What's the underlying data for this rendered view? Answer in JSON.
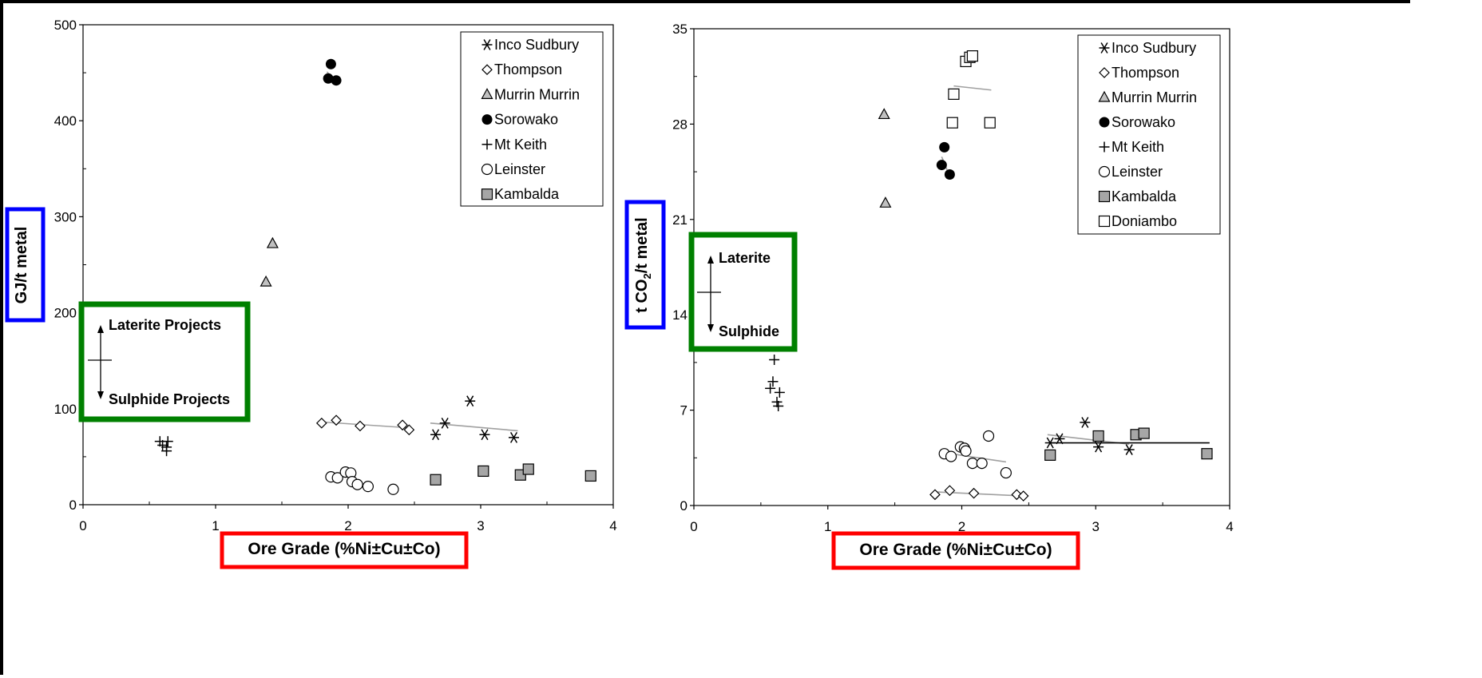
{
  "chart_data": [
    {
      "type": "scatter",
      "ylabel": "GJ/t metal",
      "xlabel": "Ore Grade (%Ni±Cu±Co)",
      "xlim": [
        0,
        4
      ],
      "ylim": [
        0,
        500
      ],
      "xticks": [
        "0",
        "1",
        "2",
        "3",
        "4"
      ],
      "yticks": [
        "0",
        "100",
        "200",
        "300",
        "400",
        "500"
      ],
      "legend_position": "top-right",
      "annotation": {
        "top": "Laterite Projects",
        "bottom": "Sulphide Projects"
      },
      "series": [
        {
          "name": "Inco Sudbury",
          "marker": "asterisk",
          "points": [
            [
              2.92,
              108
            ],
            [
              2.73,
              85
            ],
            [
              2.66,
              73
            ],
            [
              3.03,
              73
            ],
            [
              3.25,
              70
            ]
          ]
        },
        {
          "name": "Thompson",
          "marker": "diamond",
          "points": [
            [
              1.8,
              85
            ],
            [
              1.91,
              88
            ],
            [
              2.09,
              82
            ],
            [
              2.41,
              83
            ],
            [
              2.46,
              78
            ]
          ]
        },
        {
          "name": "Murrin Murrin",
          "marker": "triangle",
          "points": [
            [
              1.43,
              272
            ],
            [
              1.38,
              232
            ]
          ]
        },
        {
          "name": "Sorowako",
          "marker": "filled-circle",
          "points": [
            [
              1.87,
              459
            ],
            [
              1.85,
              444
            ],
            [
              1.91,
              442
            ]
          ]
        },
        {
          "name": "Mt Keith",
          "marker": "plus",
          "points": [
            [
              0.58,
              66
            ],
            [
              0.64,
              66
            ],
            [
              0.6,
              62
            ],
            [
              0.63,
              60
            ],
            [
              0.63,
              56
            ]
          ]
        },
        {
          "name": "Leinster",
          "marker": "circle",
          "points": [
            [
              1.87,
              29
            ],
            [
              1.92,
              28
            ],
            [
              1.98,
              34
            ],
            [
              2.02,
              33
            ],
            [
              2.03,
              24
            ],
            [
              2.07,
              21
            ],
            [
              2.15,
              19
            ],
            [
              2.34,
              16
            ]
          ]
        },
        {
          "name": "Kambalda",
          "marker": "gray-square",
          "points": [
            [
              2.66,
              26
            ],
            [
              3.02,
              35
            ],
            [
              3.3,
              31
            ],
            [
              3.36,
              37
            ],
            [
              3.83,
              30
            ]
          ]
        }
      ],
      "trendlines": [
        {
          "color": "#a0a0a0",
          "points": [
            [
              2.62,
              85
            ],
            [
              3.28,
              77
            ]
          ]
        },
        {
          "color": "#a0a0a0",
          "points": [
            [
              1.82,
              86
            ],
            [
              2.47,
              80
            ]
          ]
        },
        {
          "color": "#a0a0a0",
          "points": [
            [
              1.84,
              451
            ],
            [
              1.9,
              441
            ]
          ]
        }
      ]
    },
    {
      "type": "scatter",
      "ylabel": "t CO2/t metal",
      "xlabel": "Ore Grade (%Ni±Cu±Co)",
      "xlim": [
        0,
        4
      ],
      "ylim": [
        0,
        35
      ],
      "xticks": [
        "0",
        "1",
        "2",
        "3",
        "4"
      ],
      "yticks": [
        "0",
        "7",
        "14",
        "21",
        "28",
        "35"
      ],
      "legend_position": "top-right",
      "annotation": {
        "top": "Laterite",
        "bottom": "Sulphide"
      },
      "series": [
        {
          "name": "Inco Sudbury",
          "marker": "asterisk",
          "points": [
            [
              2.92,
              6.1
            ],
            [
              2.73,
              4.9
            ],
            [
              2.66,
              4.6
            ],
            [
              3.02,
              4.3
            ],
            [
              3.25,
              4.1
            ]
          ]
        },
        {
          "name": "Thompson",
          "marker": "diamond",
          "points": [
            [
              1.8,
              0.8
            ],
            [
              1.91,
              1.1
            ],
            [
              2.09,
              0.9
            ],
            [
              2.41,
              0.8
            ],
            [
              2.46,
              0.7
            ]
          ]
        },
        {
          "name": "Murrin Murrin",
          "marker": "triangle",
          "points": [
            [
              1.42,
              28.7
            ],
            [
              1.43,
              22.2
            ]
          ]
        },
        {
          "name": "Sorowako",
          "marker": "filled-circle",
          "points": [
            [
              1.87,
              26.3
            ],
            [
              1.85,
              25.0
            ],
            [
              1.91,
              24.3
            ]
          ]
        },
        {
          "name": "Mt Keith",
          "marker": "plus",
          "points": [
            [
              0.6,
              10.7
            ],
            [
              0.59,
              9.1
            ],
            [
              0.57,
              8.6
            ],
            [
              0.64,
              8.3
            ],
            [
              0.62,
              7.6
            ],
            [
              0.63,
              7.3
            ]
          ]
        },
        {
          "name": "Leinster",
          "marker": "circle",
          "points": [
            [
              1.99,
              4.3
            ],
            [
              2.02,
              4.2
            ],
            [
              2.03,
              4.0
            ],
            [
              1.87,
              3.8
            ],
            [
              1.92,
              3.6
            ],
            [
              2.08,
              3.1
            ],
            [
              2.15,
              3.1
            ],
            [
              2.33,
              2.4
            ],
            [
              2.2,
              5.1
            ]
          ]
        },
        {
          "name": "Kambalda",
          "marker": "gray-square",
          "points": [
            [
              2.66,
              3.7
            ],
            [
              3.02,
              5.1
            ],
            [
              3.3,
              5.2
            ],
            [
              3.36,
              5.3
            ],
            [
              3.83,
              3.8
            ]
          ]
        },
        {
          "name": "Doniambo",
          "marker": "square",
          "points": [
            [
              2.03,
              32.6
            ],
            [
              2.06,
              32.9
            ],
            [
              2.08,
              33.0
            ],
            [
              1.94,
              30.2
            ],
            [
              1.93,
              28.1
            ],
            [
              2.21,
              28.1
            ]
          ]
        }
      ],
      "trendlines": [
        {
          "color": "#a0a0a0",
          "points": [
            [
              1.94,
              30.8
            ],
            [
              2.22,
              30.5
            ]
          ]
        },
        {
          "color": "#a0a0a0",
          "points": [
            [
              1.85,
              3.9
            ],
            [
              2.33,
              3.2
            ]
          ]
        },
        {
          "color": "#a0a0a0",
          "points": [
            [
              1.8,
              1.0
            ],
            [
              2.46,
              0.7
            ]
          ]
        },
        {
          "color": "#a0a0a0",
          "points": [
            [
              2.64,
              5.2
            ],
            [
              3.25,
              4.5
            ]
          ]
        },
        {
          "color": "#000000",
          "points": [
            [
              2.66,
              4.6
            ],
            [
              3.85,
              4.6
            ]
          ]
        },
        {
          "color": "#a0a0a0",
          "points": [
            [
              1.85,
              25.6
            ],
            [
              1.9,
              24.4
            ]
          ]
        }
      ]
    }
  ],
  "colors": {
    "ylabel_box": "#0000ff",
    "xlabel_box": "#ff0000",
    "annotation_box": "#008000",
    "triangle_fill": "#c0c0c0",
    "kambalda_fill": "#a6a6a6"
  }
}
